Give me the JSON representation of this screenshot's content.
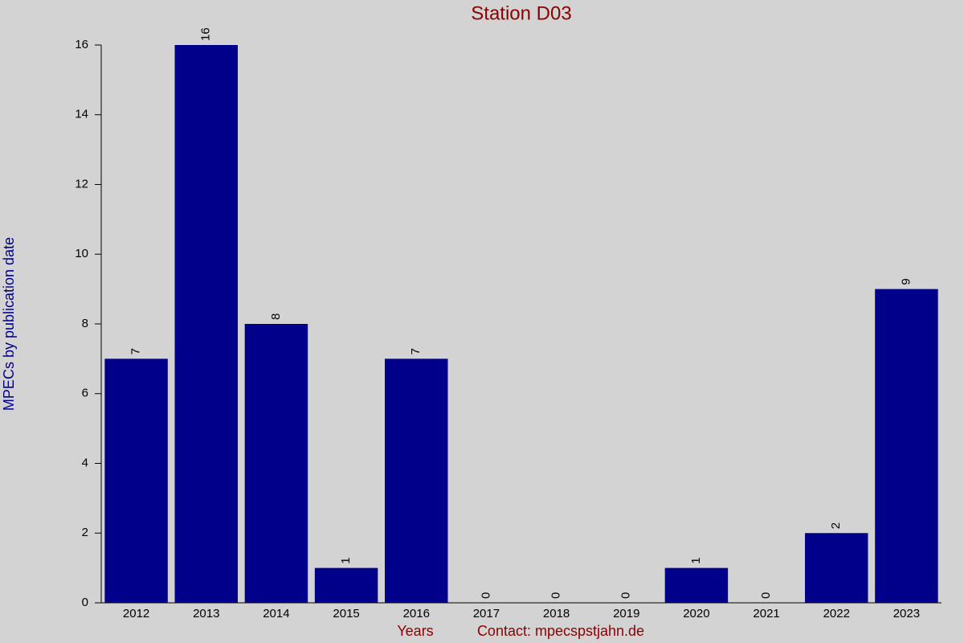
{
  "chart_data": {
    "type": "bar",
    "title": "Station D03",
    "x_label": "Years",
    "y_label": "MPECs by publication date",
    "contact": "Contact: mpecspstjahn.de",
    "categories": [
      "2012",
      "2013",
      "2014",
      "2015",
      "2016",
      "2017",
      "2018",
      "2019",
      "2020",
      "2021",
      "2022",
      "2023"
    ],
    "values": [
      7,
      16,
      8,
      1,
      7,
      0,
      0,
      0,
      1,
      0,
      2,
      9
    ],
    "color": "#00008b",
    "ylim": [
      0,
      16
    ],
    "yticks": [
      0,
      2,
      4,
      6,
      8,
      10,
      12,
      14,
      16
    ],
    "grid": false
  }
}
